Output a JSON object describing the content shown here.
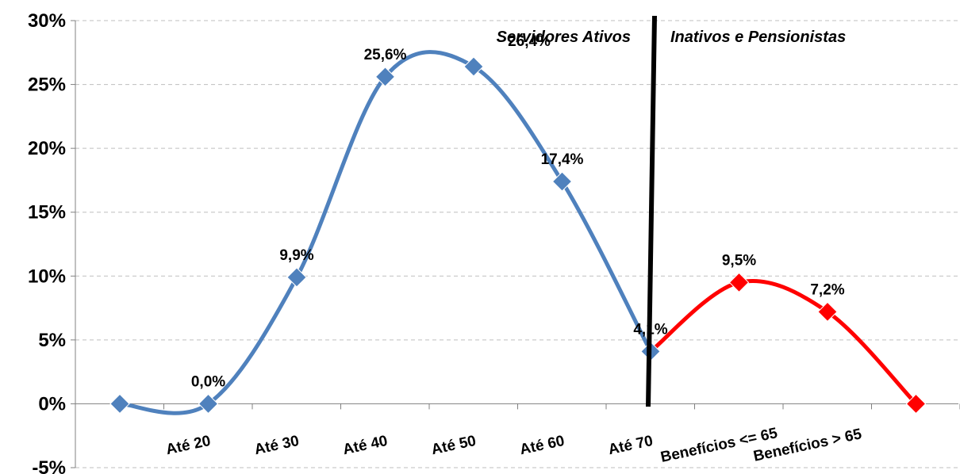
{
  "chart_data": {
    "type": "line",
    "smooth": true,
    "grid": true,
    "ylim": [
      -5,
      30
    ],
    "y_ticks": [
      "-5%",
      "0%",
      "5%",
      "10%",
      "15%",
      "20%",
      "25%",
      "30%"
    ],
    "categories": [
      "Até 20",
      "Até 30",
      "Até 40",
      "Até 50",
      "Até 60",
      "Até 70",
      "Benefícios <= 65",
      "Benefícios > 65"
    ],
    "series": [
      {
        "color": "#4f81bd",
        "points": [
          {
            "x": "",
            "y": 0
          },
          {
            "x": "Até 20",
            "y": 0.0,
            "label": "0,0%"
          },
          {
            "x": "Até 30",
            "y": 9.9,
            "label": "9,9%"
          },
          {
            "x": "Até 40",
            "y": 25.6,
            "label": "25,6%"
          },
          {
            "x": "Até 50",
            "y": 26.4,
            "label": "26,4%"
          },
          {
            "x": "Até 60",
            "y": 17.4,
            "label": "17,4%"
          },
          {
            "x": "Até 70",
            "y": 4.1,
            "label": "4,1%"
          }
        ]
      },
      {
        "color": "#ff0000",
        "points": [
          {
            "x": "Até 70",
            "y": 4.1
          },
          {
            "x": "Benefícios <= 65",
            "y": 9.5,
            "label": "9,5%"
          },
          {
            "x": "Benefícios > 65",
            "y": 7.2,
            "label": "7,2%"
          },
          {
            "x": "",
            "y": 0
          }
        ]
      }
    ],
    "annotations": {
      "left_region": "Servidores Ativos",
      "right_region": "Inativos e Pensionistas"
    }
  }
}
